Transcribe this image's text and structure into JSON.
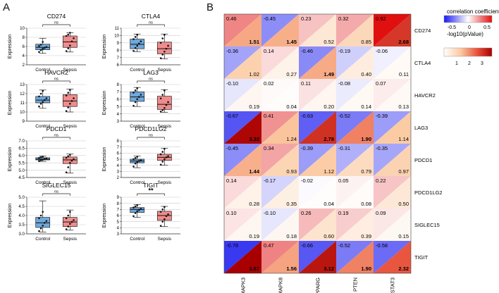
{
  "panel_labels": {
    "a": "A",
    "b": "B"
  },
  "legend": {
    "corr_title": "correlation coefficient",
    "corr_ticks": [
      "-0.5",
      "0",
      "0.5"
    ],
    "pval_title": "-log10(pValue)",
    "pval_ticks": [
      "1",
      "2",
      "3"
    ]
  },
  "colors": {
    "control_fill": "#6fa8dc",
    "sepsis_fill": "#f08c8c",
    "neg_strong": "#1a1af0",
    "pos_strong": "#e01010",
    "pval_strong": "#a80000",
    "grid_line": "#cccccc"
  },
  "chart_data": [
    {
      "type": "box",
      "gene": "CD274",
      "ylabel": "Expression",
      "categories": [
        "Control",
        "Sepsis"
      ],
      "ylim": [
        2,
        10
      ],
      "yticks": [
        "2",
        "4",
        "6",
        "8",
        "10"
      ],
      "significance": "ns",
      "boxes": [
        {
          "group": "Control",
          "min": 4.5,
          "q1": 5.3,
          "median": 5.8,
          "q3": 6.5,
          "max": 7.8,
          "points": [
            4.8,
            5.2,
            5.5,
            5.7,
            5.9,
            6.1,
            6.4,
            7.0
          ]
        },
        {
          "group": "Sepsis",
          "min": 4.8,
          "q1": 5.8,
          "median": 7.0,
          "q3": 8.3,
          "max": 9.0,
          "points": [
            5.0,
            5.6,
            6.2,
            7.1,
            7.8,
            8.3,
            8.6,
            9.0
          ]
        }
      ]
    },
    {
      "type": "box",
      "gene": "CTLA4",
      "ylabel": "Expression",
      "categories": [
        "Control",
        "Sepsis"
      ],
      "ylim": [
        6,
        11
      ],
      "yticks": [
        "6",
        "7",
        "8",
        "9",
        "10",
        "11"
      ],
      "significance": "ns",
      "boxes": [
        {
          "group": "Control",
          "min": 7.8,
          "q1": 8.2,
          "median": 8.8,
          "q3": 9.5,
          "max": 10.2,
          "points": [
            7.9,
            8.3,
            8.6,
            8.9,
            9.2,
            9.5,
            9.8,
            10.1
          ]
        },
        {
          "group": "Sepsis",
          "min": 6.8,
          "q1": 7.5,
          "median": 8.2,
          "q3": 9.1,
          "max": 10.2,
          "points": [
            6.9,
            7.4,
            7.8,
            8.2,
            8.6,
            9.0,
            9.6,
            10.1
          ]
        }
      ]
    },
    {
      "type": "box",
      "gene": "HAVCR2",
      "ylabel": "Expression",
      "categories": [
        "Control",
        "Sepsis"
      ],
      "ylim": [
        9,
        13
      ],
      "yticks": [
        "9",
        "10",
        "11",
        "12",
        "13"
      ],
      "significance": "ns",
      "boxes": [
        {
          "group": "Control",
          "min": 10.4,
          "q1": 11.0,
          "median": 11.3,
          "q3": 11.7,
          "max": 12.4,
          "points": [
            10.6,
            10.9,
            11.1,
            11.3,
            11.5,
            11.7,
            12.0,
            12.3
          ]
        },
        {
          "group": "Sepsis",
          "min": 10.0,
          "q1": 10.6,
          "median": 11.2,
          "q3": 11.9,
          "max": 12.5,
          "points": [
            10.1,
            10.5,
            10.9,
            11.2,
            11.5,
            11.8,
            12.1,
            12.4
          ]
        }
      ]
    },
    {
      "type": "box",
      "gene": "LAG3",
      "ylabel": "Expression",
      "categories": [
        "Control",
        "Sepsis"
      ],
      "ylim": [
        3,
        8
      ],
      "yticks": [
        "3",
        "4",
        "5",
        "6",
        "7",
        "8"
      ],
      "significance": "ns",
      "boxes": [
        {
          "group": "Control",
          "min": 5.0,
          "q1": 5.7,
          "median": 6.3,
          "q3": 7.0,
          "max": 7.6,
          "points": [
            5.1,
            5.6,
            6.0,
            6.3,
            6.6,
            6.9,
            7.2,
            7.5
          ]
        },
        {
          "group": "Sepsis",
          "min": 4.2,
          "q1": 4.6,
          "median": 5.3,
          "q3": 6.4,
          "max": 7.3,
          "points": [
            4.3,
            4.5,
            4.8,
            5.2,
            5.6,
            6.1,
            6.6,
            7.2
          ]
        }
      ]
    },
    {
      "type": "box",
      "gene": "PDCD1",
      "ylabel": "Expression",
      "categories": [
        "Control",
        "Sepsis"
      ],
      "ylim": [
        4.5,
        7.0
      ],
      "yticks": [
        "4.5",
        "5.0",
        "5.5",
        "6.0",
        "6.5",
        "7.0"
      ],
      "significance": "ns",
      "boxes": [
        {
          "group": "Control",
          "min": 5.6,
          "q1": 5.7,
          "median": 5.75,
          "q3": 5.85,
          "max": 5.95,
          "points": [
            5.62,
            5.68,
            5.72,
            5.76,
            5.8,
            5.84,
            5.88,
            5.93
          ]
        },
        {
          "group": "Sepsis",
          "min": 4.8,
          "q1": 5.45,
          "median": 5.7,
          "q3": 5.9,
          "max": 6.1,
          "points": [
            4.85,
            5.2,
            5.5,
            5.65,
            5.75,
            5.85,
            5.95,
            6.05
          ]
        }
      ]
    },
    {
      "type": "box",
      "gene": "PDCD1LG2",
      "ylabel": "Expression",
      "categories": [
        "Control",
        "Sepsis"
      ],
      "ylim": [
        2,
        8
      ],
      "yticks": [
        "2",
        "3",
        "4",
        "5",
        "6",
        "7",
        "8"
      ],
      "significance": "ns",
      "boxes": [
        {
          "group": "Control",
          "min": 3.6,
          "q1": 4.4,
          "median": 4.7,
          "q3": 5.0,
          "max": 5.5,
          "points": [
            3.8,
            4.3,
            4.5,
            4.7,
            4.8,
            5.0,
            5.2,
            5.4
          ]
        },
        {
          "group": "Sepsis",
          "min": 4.0,
          "q1": 4.8,
          "median": 5.3,
          "q3": 5.8,
          "max": 6.8,
          "points": [
            4.1,
            4.6,
            5.0,
            5.3,
            5.5,
            5.8,
            6.2,
            6.7
          ]
        }
      ]
    },
    {
      "type": "box",
      "gene": "SIGLEC15",
      "ylabel": "Expression",
      "categories": [
        "Control",
        "Sepsis"
      ],
      "ylim": [
        3.0,
        5.0
      ],
      "yticks": [
        "3.0",
        "3.5",
        "4.0",
        "4.5",
        "5.0"
      ],
      "significance": "ns",
      "boxes": [
        {
          "group": "Control",
          "min": 3.1,
          "q1": 3.35,
          "median": 3.6,
          "q3": 3.9,
          "max": 4.8,
          "points": [
            3.15,
            3.3,
            3.45,
            3.6,
            3.7,
            3.85,
            4.0,
            4.2
          ]
        },
        {
          "group": "Sepsis",
          "min": 3.2,
          "q1": 3.4,
          "median": 3.65,
          "q3": 3.9,
          "max": 4.3,
          "points": [
            3.25,
            3.4,
            3.55,
            3.65,
            3.75,
            3.85,
            4.0,
            4.2
          ]
        }
      ]
    },
    {
      "type": "box",
      "gene": "TIGIT",
      "ylabel": "Expression",
      "categories": [
        "Control",
        "Sepsis"
      ],
      "ylim": [
        3,
        9
      ],
      "yticks": [
        "3",
        "4",
        "5",
        "6",
        "7",
        "8",
        "9"
      ],
      "significance": "**",
      "boxes": [
        {
          "group": "Control",
          "min": 5.7,
          "q1": 6.5,
          "median": 7.0,
          "q3": 7.3,
          "max": 7.8,
          "points": [
            5.9,
            6.4,
            6.7,
            6.9,
            7.1,
            7.3,
            7.5,
            7.7
          ]
        },
        {
          "group": "Sepsis",
          "min": 4.2,
          "q1": 5.2,
          "median": 6.0,
          "q3": 6.7,
          "max": 7.5,
          "points": [
            4.3,
            5.0,
            5.4,
            5.9,
            6.2,
            6.6,
            7.0,
            7.4
          ]
        }
      ]
    },
    {
      "type": "heatmap",
      "title": "",
      "columns": [
        "MAPK3",
        "MAPK8",
        "PPARG",
        "PTEN",
        "STAT3"
      ],
      "rows": [
        "CD274",
        "CTLA4",
        "HAVCR2",
        "LAG3",
        "PDCD1",
        "PDCD1LG2",
        "SIGLEC15",
        "TIGIT"
      ],
      "corr": [
        [
          "0.46",
          "-0.45",
          "0.23",
          "0.32",
          "0.92"
        ],
        [
          "-0.36",
          "0.14",
          "-0.46",
          "-0.19",
          "-0.06"
        ],
        [
          "-0.10",
          "0.02",
          "0.11",
          "-0.08",
          "0.07"
        ],
        [
          "-0.67",
          "0.41",
          "-0.63",
          "-0.52",
          "-0.39"
        ],
        [
          "-0.45",
          "0.34",
          "-0.39",
          "-0.31",
          "-0.35"
        ],
        [
          "0.14",
          "-0.17",
          "-0.02",
          "0.05",
          "0.22"
        ],
        [
          "0.10",
          "-0.10",
          "0.26",
          "0.19",
          "0.09"
        ],
        [
          "-0.78",
          "0.47",
          "-0.66",
          "-0.52",
          "-0.58"
        ]
      ],
      "logp": [
        [
          "1.51",
          "1.45",
          "0.52",
          "0.85",
          "2.68"
        ],
        [
          "1.02",
          "0.27",
          "1.49",
          "0.40",
          "0.11"
        ],
        [
          "0.19",
          "0.04",
          "0.20",
          "0.14",
          "0.13"
        ],
        [
          "3.32",
          "1.24",
          "2.78",
          "1.90",
          "1.14"
        ],
        [
          "1.44",
          "0.93",
          "1.12",
          "0.79",
          "0.97"
        ],
        [
          "0.28",
          "0.35",
          "0.04",
          "0.08",
          "0.50"
        ],
        [
          "0.19",
          "0.18",
          "0.60",
          "0.39",
          "0.15"
        ],
        [
          "3.87",
          "1.56",
          "3.12",
          "1.90",
          "2.32"
        ]
      ],
      "bold_logp": [
        [
          true,
          true,
          false,
          false,
          true
        ],
        [
          false,
          false,
          true,
          false,
          false
        ],
        [
          false,
          false,
          false,
          false,
          false
        ],
        [
          true,
          false,
          true,
          true,
          false
        ],
        [
          true,
          false,
          false,
          false,
          false
        ],
        [
          false,
          false,
          false,
          false,
          false
        ],
        [
          false,
          false,
          false,
          false,
          false
        ],
        [
          true,
          true,
          true,
          true,
          true
        ]
      ]
    }
  ]
}
